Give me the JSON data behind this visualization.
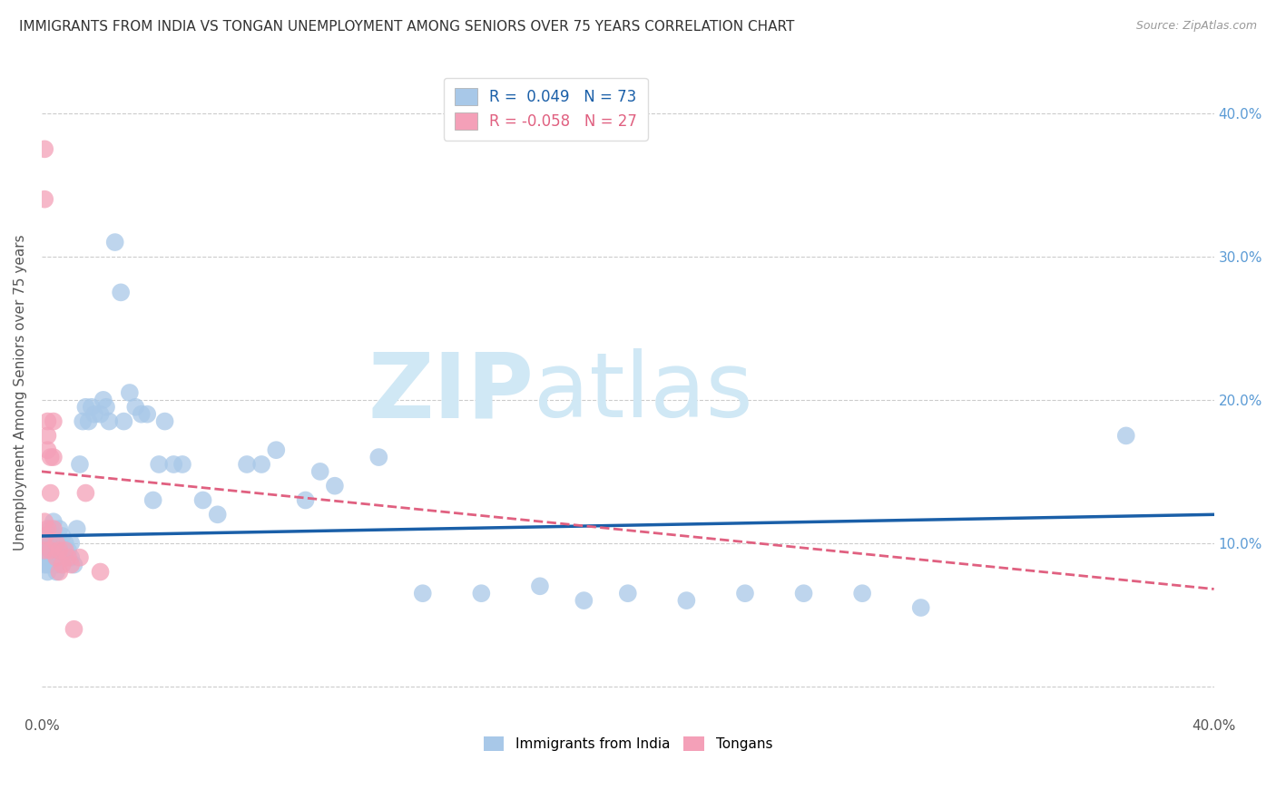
{
  "title": "IMMIGRANTS FROM INDIA VS TONGAN UNEMPLOYMENT AMONG SENIORS OVER 75 YEARS CORRELATION CHART",
  "source": "Source: ZipAtlas.com",
  "ylabel": "Unemployment Among Seniors over 75 years",
  "xlim": [
    0,
    0.4
  ],
  "ylim": [
    -0.02,
    0.43
  ],
  "yticks": [
    0.0,
    0.1,
    0.2,
    0.3,
    0.4
  ],
  "R_india": 0.049,
  "N_india": 73,
  "R_tonga": -0.058,
  "N_tonga": 27,
  "india_color": "#a8c8e8",
  "tonga_color": "#f4a0b8",
  "india_line_color": "#1a5fa8",
  "tonga_line_color": "#e06080",
  "india_line_x0": 0.0,
  "india_line_y0": 0.105,
  "india_line_x1": 0.4,
  "india_line_y1": 0.12,
  "tonga_line_x0": 0.0,
  "tonga_line_y0": 0.15,
  "tonga_line_x1": 0.4,
  "tonga_line_y1": 0.068,
  "india_scatter_x": [
    0.001,
    0.001,
    0.001,
    0.001,
    0.002,
    0.002,
    0.002,
    0.002,
    0.002,
    0.003,
    0.003,
    0.003,
    0.004,
    0.004,
    0.004,
    0.004,
    0.005,
    0.005,
    0.005,
    0.006,
    0.006,
    0.006,
    0.007,
    0.007,
    0.008,
    0.008,
    0.009,
    0.01,
    0.01,
    0.011,
    0.012,
    0.013,
    0.014,
    0.015,
    0.016,
    0.017,
    0.018,
    0.02,
    0.021,
    0.022,
    0.023,
    0.025,
    0.027,
    0.028,
    0.03,
    0.032,
    0.034,
    0.036,
    0.038,
    0.04,
    0.042,
    0.045,
    0.048,
    0.055,
    0.06,
    0.07,
    0.075,
    0.08,
    0.09,
    0.095,
    0.1,
    0.115,
    0.13,
    0.15,
    0.17,
    0.185,
    0.2,
    0.22,
    0.24,
    0.26,
    0.28,
    0.3,
    0.37
  ],
  "india_scatter_y": [
    0.1,
    0.105,
    0.095,
    0.085,
    0.1,
    0.095,
    0.09,
    0.085,
    0.08,
    0.11,
    0.1,
    0.095,
    0.115,
    0.105,
    0.095,
    0.09,
    0.095,
    0.085,
    0.08,
    0.11,
    0.1,
    0.095,
    0.105,
    0.095,
    0.1,
    0.09,
    0.095,
    0.1,
    0.09,
    0.085,
    0.11,
    0.155,
    0.185,
    0.195,
    0.185,
    0.195,
    0.19,
    0.19,
    0.2,
    0.195,
    0.185,
    0.31,
    0.275,
    0.185,
    0.205,
    0.195,
    0.19,
    0.19,
    0.13,
    0.155,
    0.185,
    0.155,
    0.155,
    0.13,
    0.12,
    0.155,
    0.155,
    0.165,
    0.13,
    0.15,
    0.14,
    0.16,
    0.065,
    0.065,
    0.07,
    0.06,
    0.065,
    0.06,
    0.065,
    0.065,
    0.065,
    0.055,
    0.175
  ],
  "tonga_scatter_x": [
    0.001,
    0.001,
    0.001,
    0.001,
    0.001,
    0.002,
    0.002,
    0.002,
    0.002,
    0.003,
    0.003,
    0.003,
    0.004,
    0.004,
    0.004,
    0.005,
    0.005,
    0.006,
    0.006,
    0.007,
    0.008,
    0.009,
    0.01,
    0.011,
    0.013,
    0.015,
    0.02
  ],
  "tonga_scatter_y": [
    0.375,
    0.34,
    0.115,
    0.105,
    0.095,
    0.185,
    0.175,
    0.165,
    0.11,
    0.16,
    0.135,
    0.095,
    0.185,
    0.16,
    0.11,
    0.1,
    0.09,
    0.095,
    0.08,
    0.085,
    0.095,
    0.09,
    0.085,
    0.04,
    0.09,
    0.135,
    0.08
  ],
  "background_color": "#ffffff",
  "grid_color": "#cccccc",
  "title_color": "#333333",
  "watermark_zip": "ZIP",
  "watermark_atlas": "atlas",
  "watermark_color": "#d0e8f5"
}
